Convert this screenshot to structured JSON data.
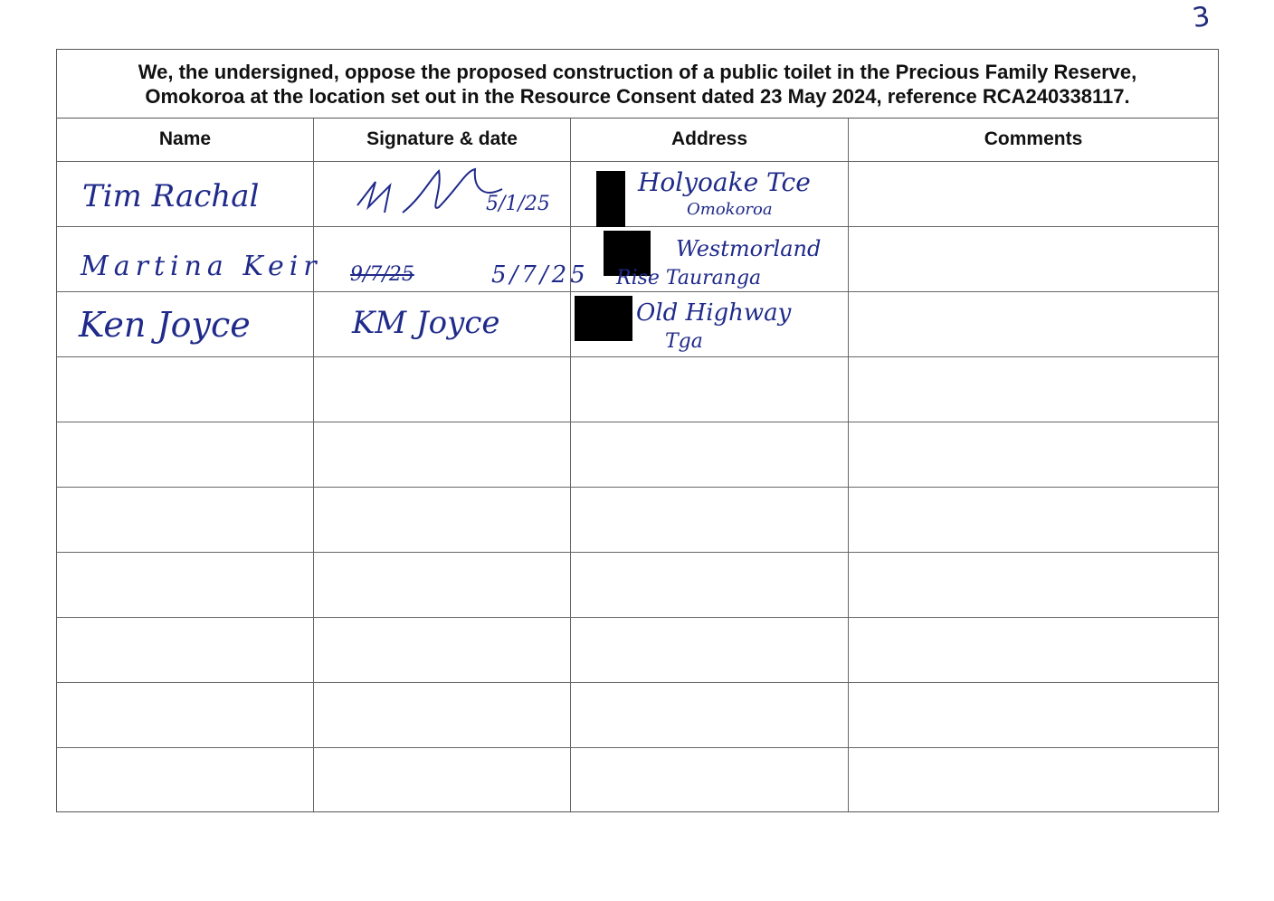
{
  "page": {
    "number": "3"
  },
  "heading": {
    "line1": "We, the undersigned, oppose the proposed construction of a public toilet in the Precious Family Reserve,",
    "line2": "Omokoroa at the location set out in the Resource Consent dated 23 May 2024, reference RCA240338117."
  },
  "columns": {
    "name": "Name",
    "signature": "Signature & date",
    "address": "Address",
    "comments": "Comments"
  },
  "entries": [
    {
      "name": "Tim Rachal",
      "signature_date": "5/1/25",
      "address_line1": "Holyoake Tce",
      "address_line2": "Omokoroa",
      "comments": ""
    },
    {
      "name": "Martina Keir",
      "signature_struck": "9/7/25",
      "signature_date": "5/7/25",
      "address_line1": "Westmorland",
      "address_line2": "Rise Tauranga",
      "comments": ""
    },
    {
      "name": "Ken Joyce",
      "signature_name": "KM Joyce",
      "address_line1": "Old Highway",
      "address_line2": "Tga",
      "comments": ""
    }
  ],
  "colors": {
    "ink": "#1f2a8a",
    "rule": "#666666",
    "redaction": "#000000"
  }
}
